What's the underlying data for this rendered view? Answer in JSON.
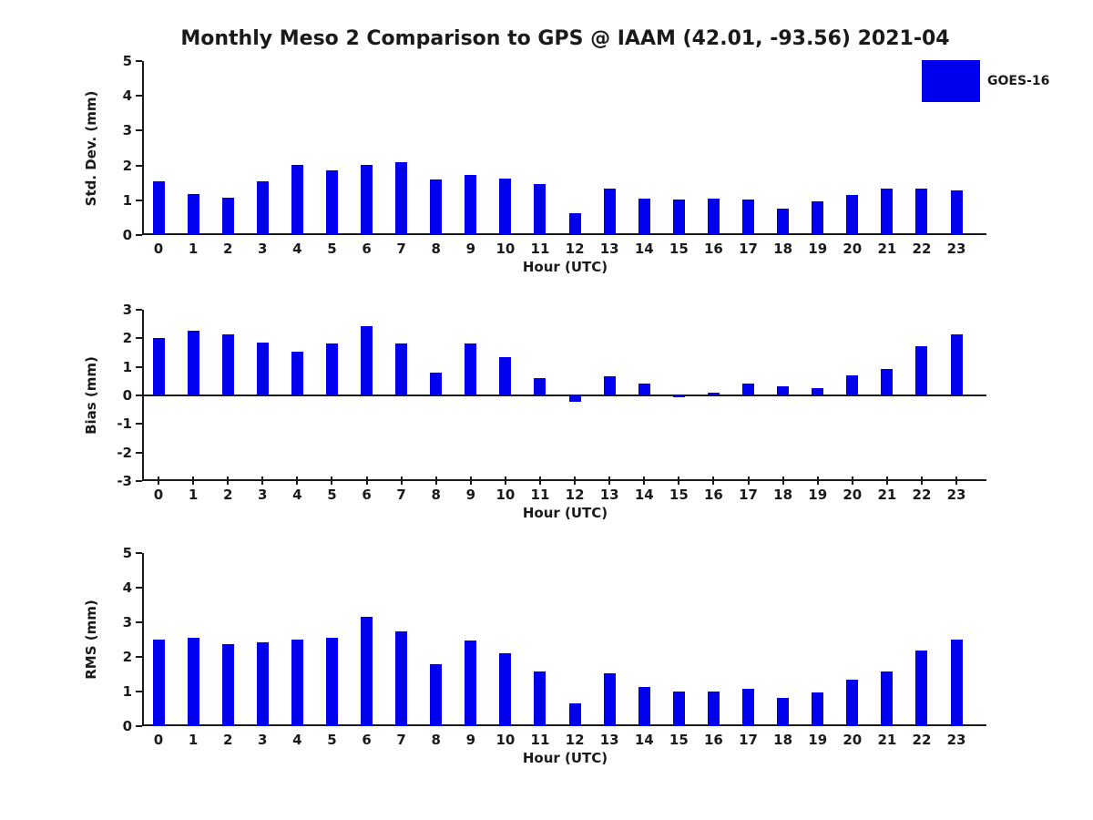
{
  "title": "Monthly Meso 2 Comparison to GPS @ IAAM (42.01, -93.56) 2021-04",
  "xlabel": "Hour (UTC)",
  "legend": {
    "label": "GOES-16",
    "color": "#0000EE"
  },
  "chart_data": [
    {
      "type": "bar",
      "series_name": "GOES-16",
      "color": "#0000EE",
      "ylabel": "Std. Dev. (mm)",
      "xlabel": "Hour (UTC)",
      "ylim": [
        0,
        5
      ],
      "yticks": [
        0,
        1,
        2,
        3,
        4,
        5
      ],
      "grid": false,
      "legend_position": "upper-right-outside",
      "categories": [
        "0",
        "1",
        "2",
        "3",
        "4",
        "5",
        "6",
        "7",
        "8",
        "9",
        "10",
        "11",
        "12",
        "13",
        "14",
        "15",
        "16",
        "17",
        "18",
        "19",
        "20",
        "21",
        "22",
        "23"
      ],
      "values": [
        1.54,
        1.19,
        1.08,
        1.54,
        2.01,
        1.87,
        2.01,
        2.09,
        1.6,
        1.73,
        1.63,
        1.46,
        0.62,
        1.33,
        1.04,
        1.02,
        1.05,
        1.02,
        0.76,
        0.96,
        1.16,
        1.33,
        1.33,
        1.29
      ]
    },
    {
      "type": "bar",
      "series_name": "GOES-16",
      "color": "#0000EE",
      "ylabel": "Bias (mm)",
      "xlabel": "Hour (UTC)",
      "ylim": [
        -3,
        3
      ],
      "yticks": [
        -3,
        -2,
        -1,
        0,
        1,
        2,
        3
      ],
      "grid": false,
      "categories": [
        "0",
        "1",
        "2",
        "3",
        "4",
        "5",
        "6",
        "7",
        "8",
        "9",
        "10",
        "11",
        "12",
        "13",
        "14",
        "15",
        "16",
        "17",
        "18",
        "19",
        "20",
        "21",
        "22",
        "23"
      ],
      "values": [
        2.0,
        2.28,
        2.13,
        1.85,
        1.52,
        1.83,
        2.44,
        1.81,
        0.8,
        1.83,
        1.35,
        0.62,
        -0.21,
        0.67,
        0.43,
        -0.06,
        0.08,
        0.43,
        0.33,
        0.26,
        0.7,
        0.93,
        1.71,
        2.15
      ]
    },
    {
      "type": "bar",
      "series_name": "GOES-16",
      "color": "#0000EE",
      "ylabel": "RMS (mm)",
      "xlabel": "Hour (UTC)",
      "ylim": [
        0,
        5
      ],
      "yticks": [
        0,
        1,
        2,
        3,
        4,
        5
      ],
      "grid": false,
      "categories": [
        "0",
        "1",
        "2",
        "3",
        "4",
        "5",
        "6",
        "7",
        "8",
        "9",
        "10",
        "11",
        "12",
        "13",
        "14",
        "15",
        "16",
        "17",
        "18",
        "19",
        "20",
        "21",
        "22",
        "23"
      ],
      "values": [
        2.51,
        2.54,
        2.38,
        2.42,
        2.51,
        2.56,
        3.17,
        2.74,
        1.78,
        2.48,
        2.1,
        1.57,
        0.65,
        1.52,
        1.13,
        0.99,
        1.01,
        1.07,
        0.81,
        0.98,
        1.34,
        1.58,
        2.19,
        2.51
      ]
    }
  ]
}
